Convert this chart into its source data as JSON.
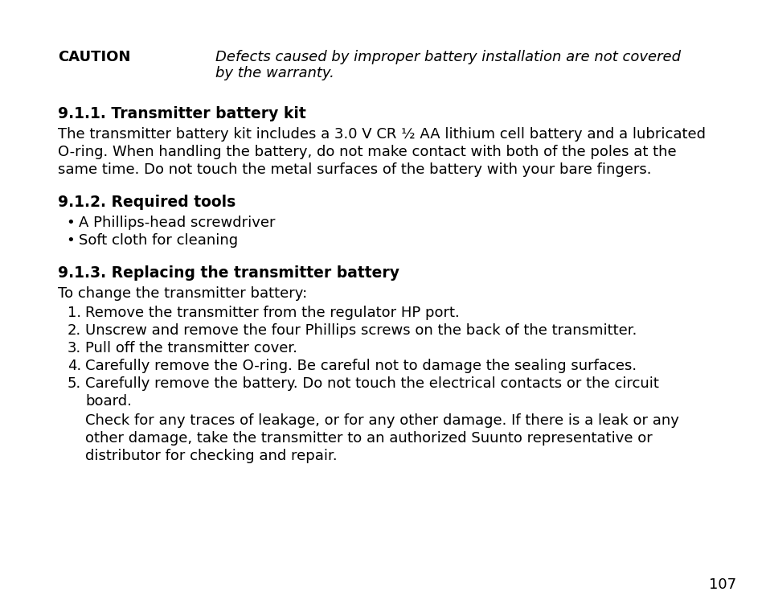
{
  "background_color": "#ffffff",
  "page_number": "107",
  "caution_label": "CAUTION",
  "caution_line1": "Defects caused by improper battery installation are not covered",
  "caution_line2": "by the warranty.",
  "section_911_title": "9.1.1. Transmitter battery kit",
  "section_911_lines": [
    "The transmitter battery kit includes a 3.0 V CR ½ AA lithium cell battery and a lubricated",
    "O-ring. When handling the battery, do not make contact with both of the poles at the",
    "same time. Do not touch the metal surfaces of the battery with your bare fingers."
  ],
  "section_912_title": "9.1.2. Required tools",
  "section_912_bullets": [
    "A Phillips-head screwdriver",
    "Soft cloth for cleaning"
  ],
  "section_913_title": "9.1.3. Replacing the transmitter battery",
  "section_913_intro": "To change the transmitter battery:",
  "section_913_step1": "Remove the transmitter from the regulator HP port.",
  "section_913_step2": "Unscrew and remove the four Phillips screws on the back of the transmitter.",
  "section_913_step3": "Pull off the transmitter cover.",
  "section_913_step4": "Carefully remove the O-ring. Be careful not to damage the sealing surfaces.",
  "section_913_step5a": "Carefully remove the battery. Do not touch the electrical contacts or the circuit",
  "section_913_step5b": "board.",
  "section_913_step5c": "Check for any traces of leakage, or for any other damage. If there is a leak or any",
  "section_913_step5d": "other damage, take the transmitter to an authorized Suunto representative or",
  "section_913_step5e": "distributor for checking and repair.",
  "font_size_body": 13,
  "font_size_heading": 13.5,
  "font_size_caution": 13,
  "text_color": "#000000"
}
